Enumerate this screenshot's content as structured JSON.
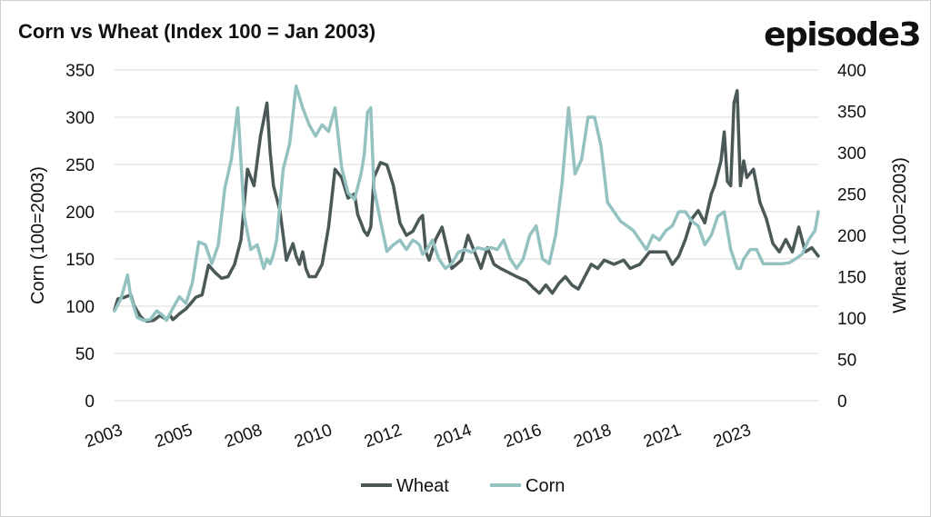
{
  "title": "Corn vs Wheat (Index 100 = Jan 2003)",
  "logo": "episode3",
  "colors": {
    "wheat": "#4a5857",
    "corn": "#93c2c1",
    "grid": "#d9d9d9"
  },
  "chart_data": {
    "type": "line",
    "title": "Corn vs Wheat (Index 100 = Jan 2003)",
    "grid": true,
    "legend_position": "bottom-center",
    "x_tick_labels": [
      "2003",
      "2005",
      "2008",
      "2010",
      "2012",
      "2014",
      "2016",
      "2018",
      "2021",
      "2023"
    ],
    "x_range": [
      2003.0,
      2024.7
    ],
    "y_left": {
      "label": "Corn (100=2003)",
      "range": [
        0,
        350
      ],
      "ticks": [
        "0",
        "50",
        "100",
        "150",
        "200",
        "250",
        "300",
        "350"
      ]
    },
    "y_right": {
      "label": "Wheat ( 100=2003)",
      "range": [
        0,
        400
      ],
      "ticks": [
        "0",
        "50",
        "100",
        "150",
        "200",
        "250",
        "300",
        "350",
        "400"
      ]
    },
    "series": [
      {
        "name": "Wheat",
        "axis": "right",
        "x": [
          2003.0,
          2003.1,
          2003.3,
          2003.5,
          2003.6,
          2003.8,
          2003.9,
          2004.0,
          2004.2,
          2004.4,
          2004.6,
          2004.7,
          2004.8,
          2005.0,
          2005.2,
          2005.4,
          2005.5,
          2005.7,
          2005.9,
          2006.1,
          2006.3,
          2006.5,
          2006.7,
          2006.9,
          2007.1,
          2007.3,
          2007.5,
          2007.6,
          2007.7,
          2007.8,
          2007.9,
          2008.0,
          2008.1,
          2008.3,
          2008.5,
          2008.6,
          2008.7,
          2008.8,
          2008.9,
          2009.0,
          2009.2,
          2009.4,
          2009.6,
          2009.8,
          2010.0,
          2010.2,
          2010.4,
          2010.5,
          2010.6,
          2010.7,
          2010.8,
          2010.9,
          2011.0,
          2011.2,
          2011.4,
          2011.6,
          2011.8,
          2012.0,
          2012.2,
          2012.4,
          2012.5,
          2012.6,
          2012.7,
          2012.9,
          2013.1,
          2013.4,
          2013.7,
          2013.9,
          2014.1,
          2014.3,
          2014.5,
          2014.7,
          2014.9,
          2015.1,
          2015.4,
          2015.7,
          2015.9,
          2016.1,
          2016.3,
          2016.5,
          2016.7,
          2016.9,
          2017.1,
          2017.3,
          2017.5,
          2017.7,
          2017.9,
          2018.1,
          2018.4,
          2018.7,
          2018.9,
          2019.2,
          2019.5,
          2019.8,
          2020.0,
          2020.2,
          2020.4,
          2020.6,
          2020.8,
          2021.0,
          2021.2,
          2021.4,
          2021.5,
          2021.7,
          2021.8,
          2021.9,
          2022.0,
          2022.1,
          2022.2,
          2022.3,
          2022.4,
          2022.5,
          2022.7,
          2022.9,
          2023.1,
          2023.3,
          2023.5,
          2023.7,
          2023.9,
          2024.1,
          2024.3,
          2024.5,
          2024.7
        ],
        "values": [
          110,
          123,
          125,
          128,
          115,
          102,
          98,
          96,
          97,
          103,
          98,
          104,
          98,
          105,
          111,
          120,
          125,
          128,
          164,
          155,
          148,
          150,
          165,
          195,
          280,
          260,
          320,
          340,
          360,
          300,
          260,
          245,
          230,
          170,
          190,
          175,
          165,
          180,
          160,
          150,
          150,
          165,
          210,
          280,
          270,
          245,
          250,
          225,
          215,
          205,
          200,
          210,
          270,
          288,
          285,
          260,
          215,
          200,
          205,
          220,
          224,
          180,
          170,
          195,
          210,
          160,
          170,
          200,
          180,
          160,
          185,
          165,
          160,
          156,
          150,
          145,
          137,
          130,
          140,
          130,
          142,
          150,
          140,
          135,
          150,
          165,
          160,
          170,
          165,
          170,
          160,
          165,
          180,
          180,
          180,
          165,
          175,
          195,
          220,
          230,
          215,
          250,
          260,
          290,
          325,
          265,
          260,
          360,
          375,
          260,
          290,
          270,
          280,
          240,
          220,
          190,
          180,
          195,
          180,
          210,
          180,
          185,
          175
        ]
      },
      {
        "name": "Corn",
        "axis": "left",
        "x": [
          2003.0,
          2003.2,
          2003.4,
          2003.5,
          2003.7,
          2003.9,
          2004.1,
          2004.3,
          2004.5,
          2004.6,
          2004.8,
          2005.0,
          2005.2,
          2005.4,
          2005.6,
          2005.8,
          2006.0,
          2006.2,
          2006.4,
          2006.6,
          2006.8,
          2007.0,
          2007.2,
          2007.4,
          2007.6,
          2007.7,
          2007.8,
          2007.9,
          2008.0,
          2008.2,
          2008.4,
          2008.6,
          2008.8,
          2009.0,
          2009.2,
          2009.4,
          2009.6,
          2009.8,
          2010.0,
          2010.2,
          2010.4,
          2010.6,
          2010.7,
          2010.8,
          2010.9,
          2011.0,
          2011.2,
          2011.4,
          2011.6,
          2011.8,
          2012.0,
          2012.1,
          2012.2,
          2012.3,
          2012.4,
          2012.5,
          2012.6,
          2012.8,
          2013.0,
          2013.2,
          2013.4,
          2013.6,
          2013.8,
          2014.0,
          2014.2,
          2014.4,
          2014.6,
          2014.8,
          2015.0,
          2015.2,
          2015.4,
          2015.6,
          2015.8,
          2016.0,
          2016.2,
          2016.4,
          2016.6,
          2016.8,
          2017.0,
          2017.2,
          2017.4,
          2017.6,
          2017.8,
          2018.0,
          2018.2,
          2018.4,
          2018.6,
          2018.8,
          2019.0,
          2019.2,
          2019.4,
          2019.6,
          2019.8,
          2020.0,
          2020.2,
          2020.4,
          2020.6,
          2020.8,
          2021.0,
          2021.2,
          2021.4,
          2021.6,
          2021.8,
          2022.0,
          2022.2,
          2022.3,
          2022.4,
          2022.6,
          2022.8,
          2023.0,
          2023.2,
          2023.4,
          2023.6,
          2023.8,
          2024.0,
          2024.2,
          2024.4,
          2024.6,
          2024.7
        ],
        "values": [
          95,
          108,
          133,
          110,
          88,
          85,
          86,
          95,
          90,
          85,
          98,
          110,
          103,
          125,
          168,
          165,
          145,
          165,
          225,
          255,
          310,
          195,
          160,
          165,
          140,
          150,
          145,
          155,
          170,
          245,
          272,
          333,
          310,
          292,
          280,
          292,
          285,
          310,
          247,
          220,
          213,
          240,
          260,
          305,
          310,
          225,
          190,
          158,
          165,
          170,
          160,
          165,
          170,
          168,
          165,
          155,
          158,
          170,
          150,
          140,
          145,
          157,
          160,
          157,
          162,
          160,
          162,
          160,
          170,
          150,
          140,
          150,
          175,
          185,
          150,
          145,
          175,
          230,
          310,
          240,
          255,
          300,
          300,
          270,
          210,
          200,
          190,
          185,
          180,
          170,
          160,
          175,
          170,
          180,
          185,
          200,
          200,
          190,
          185,
          165,
          175,
          195,
          200,
          160,
          140,
          140,
          150,
          160,
          160,
          145,
          145,
          145,
          145,
          146,
          150,
          155,
          170,
          180,
          200
        ]
      }
    ]
  },
  "legend": [
    {
      "label": "Wheat"
    },
    {
      "label": "Corn"
    }
  ]
}
